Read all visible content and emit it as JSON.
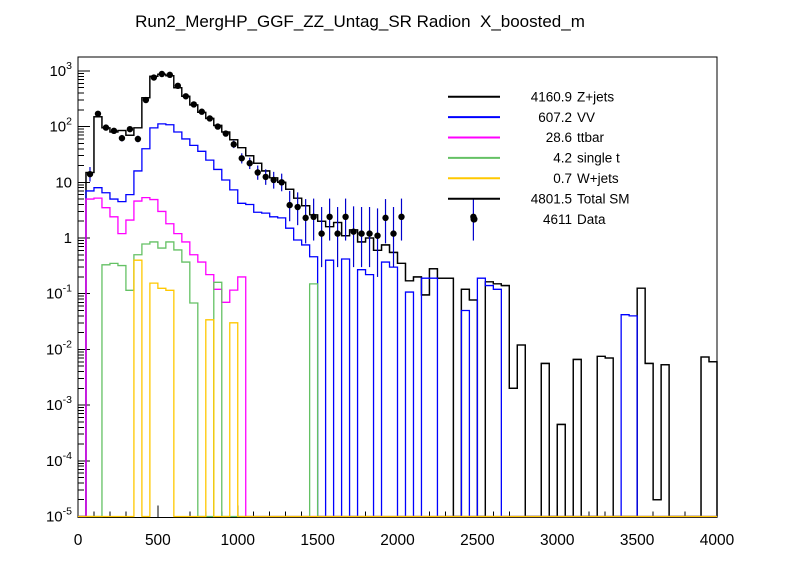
{
  "title": "Run2_MergHP_GGF_ZZ_Untag_SR Radion  X_boosted_m",
  "chart_data": {
    "type": "histogram",
    "title": "Run2_MergHP_GGF_ZZ_Untag_SR Radion  X_boosted_m",
    "x_axis": {
      "label": "",
      "min": 0,
      "max": 4000,
      "major_tick_step": 500,
      "minor_tick_step": 100,
      "tick_labels": [
        "0",
        "500",
        "1000",
        "1500",
        "2000",
        "2500",
        "3000",
        "3500",
        "4000"
      ]
    },
    "y_axis": {
      "label": "",
      "scale": "log",
      "min": 1e-05,
      "max": 1778,
      "decade_labels": [
        {
          "v": 1000,
          "base": "10",
          "exp": "3"
        },
        {
          "v": 100,
          "base": "10",
          "exp": "2"
        },
        {
          "v": 10,
          "base": "10",
          "exp": ""
        },
        {
          "v": 1,
          "base": "1",
          "exp": ""
        },
        {
          "v": 0.1,
          "base": "10",
          "exp": "-1"
        },
        {
          "v": 0.01,
          "base": "10",
          "exp": "-2"
        },
        {
          "v": 0.001,
          "base": "10",
          "exp": "-3"
        },
        {
          "v": 0.0001,
          "base": "10",
          "exp": "-4"
        },
        {
          "v": 1e-05,
          "base": "10",
          "exp": "-5"
        }
      ]
    },
    "grid": false,
    "legend_position": "top-right",
    "bin_width": 50,
    "series": [
      {
        "name": "Z+jets",
        "yield": "4160.9",
        "color": "#000000",
        "bins": [
          [
            50,
            15
          ],
          [
            100,
            150
          ],
          [
            150,
            95
          ],
          [
            200,
            80
          ],
          [
            250,
            85
          ],
          [
            300,
            70
          ],
          [
            350,
            95
          ],
          [
            400,
            330
          ],
          [
            450,
            800
          ],
          [
            500,
            870
          ],
          [
            550,
            820
          ],
          [
            600,
            500
          ],
          [
            650,
            350
          ],
          [
            700,
            245
          ],
          [
            750,
            180
          ],
          [
            800,
            140
          ],
          [
            850,
            105
          ],
          [
            900,
            80
          ],
          [
            950,
            58
          ],
          [
            1000,
            42
          ],
          [
            1050,
            30
          ],
          [
            1100,
            22
          ],
          [
            1150,
            16
          ],
          [
            1200,
            12
          ],
          [
            1250,
            10
          ],
          [
            1300,
            7.5
          ],
          [
            1350,
            5.2
          ],
          [
            1400,
            3.8
          ],
          [
            1450,
            2.6
          ],
          [
            1500,
            2.0
          ],
          [
            1550,
            1.6
          ],
          [
            1600,
            1.9
          ],
          [
            1650,
            1.1
          ],
          [
            1700,
            1.4
          ],
          [
            1750,
            0.85
          ],
          [
            1800,
            1.0
          ],
          [
            1850,
            0.6
          ],
          [
            1900,
            0.75
          ],
          [
            1950,
            0.55
          ],
          [
            2000,
            0.35
          ],
          [
            2050,
            0.17
          ],
          [
            2100,
            0.2
          ],
          [
            2150,
            0.095
          ],
          [
            2200,
            0.28
          ],
          [
            2250,
            0.19
          ],
          [
            2300,
            0.19
          ],
          [
            2400,
            0.12
          ],
          [
            2450,
            0.077
          ],
          [
            2550,
            0.163
          ],
          [
            2600,
            0.15
          ],
          [
            2650,
            0.14
          ],
          [
            2700,
            0.002
          ],
          [
            2750,
            0.012
          ],
          [
            2900,
            0.0056
          ],
          [
            3000,
            0.00045
          ],
          [
            3100,
            0.0066
          ],
          [
            3250,
            0.0075
          ],
          [
            3300,
            0.007
          ],
          [
            3500,
            0.126
          ],
          [
            3550,
            0.0056
          ],
          [
            3600,
            2e-05
          ],
          [
            3650,
            0.0053
          ],
          [
            3900,
            0.0073
          ],
          [
            3950,
            0.006
          ]
        ]
      },
      {
        "name": "VV",
        "yield": "607.2",
        "color": "#0000ff",
        "bins": [
          [
            50,
            7
          ],
          [
            100,
            8
          ],
          [
            150,
            6.5
          ],
          [
            200,
            5
          ],
          [
            250,
            4.5
          ],
          [
            300,
            6
          ],
          [
            350,
            16
          ],
          [
            400,
            40
          ],
          [
            450,
            95
          ],
          [
            500,
            112
          ],
          [
            550,
            108
          ],
          [
            600,
            80
          ],
          [
            650,
            60
          ],
          [
            700,
            46
          ],
          [
            750,
            36
          ],
          [
            800,
            25
          ],
          [
            850,
            17
          ],
          [
            900,
            11
          ],
          [
            950,
            7.3
          ],
          [
            1000,
            4.2
          ],
          [
            1050,
            4.0
          ],
          [
            1100,
            2.9
          ],
          [
            1150,
            2.8
          ],
          [
            1200,
            2.4
          ],
          [
            1250,
            2.3
          ],
          [
            1300,
            1.5
          ],
          [
            1350,
            0.92
          ],
          [
            1400,
            0.75
          ],
          [
            1450,
            0.46
          ],
          [
            1550,
            0.4
          ],
          [
            1650,
            0.42
          ],
          [
            1750,
            0.27
          ],
          [
            1800,
            0.22
          ],
          [
            1900,
            0.37
          ],
          [
            1950,
            0.3
          ],
          [
            2050,
            0.107
          ],
          [
            2150,
            0.19
          ],
          [
            2200,
            0.19
          ],
          [
            2400,
            0.05
          ],
          [
            2500,
            0.19
          ],
          [
            2550,
            0.14
          ],
          [
            2600,
            0.12
          ],
          [
            3400,
            0.042
          ],
          [
            3450,
            0.04
          ]
        ]
      },
      {
        "name": "ttbar",
        "yield": "28.6",
        "color": "#ff00ff",
        "bins": [
          [
            50,
            5.0
          ],
          [
            100,
            5.2
          ],
          [
            150,
            3.5
          ],
          [
            200,
            2.4
          ],
          [
            250,
            1.2
          ],
          [
            300,
            2.1
          ],
          [
            350,
            4.6
          ],
          [
            400,
            5.3
          ],
          [
            450,
            4.9
          ],
          [
            500,
            3.0
          ],
          [
            550,
            1.8
          ],
          [
            600,
            1.2
          ],
          [
            650,
            0.85
          ],
          [
            700,
            0.5
          ],
          [
            750,
            0.37
          ],
          [
            800,
            0.22
          ],
          [
            850,
            0.12
          ],
          [
            900,
            0.07
          ],
          [
            950,
            0.116
          ],
          [
            1000,
            0.2
          ]
        ]
      },
      {
        "name": "single t",
        "yield": "4.2",
        "color": "#64c164",
        "bins": [
          [
            150,
            0.33
          ],
          [
            200,
            0.35
          ],
          [
            250,
            0.32
          ],
          [
            300,
            0.115
          ],
          [
            350,
            0.5
          ],
          [
            400,
            0.78
          ],
          [
            450,
            0.85
          ],
          [
            500,
            0.66
          ],
          [
            550,
            0.85
          ],
          [
            600,
            0.61
          ],
          [
            650,
            0.37
          ],
          [
            700,
            0.068
          ],
          [
            850,
            0.16
          ],
          [
            1450,
            0.15
          ]
        ]
      },
      {
        "name": "W+jets",
        "yield": "0.7",
        "color": "#ffc800",
        "bins": [
          [
            350,
            0.4
          ],
          [
            450,
            0.155
          ],
          [
            500,
            0.125
          ],
          [
            550,
            0.115
          ],
          [
            800,
            0.034
          ],
          [
            950,
            0.03
          ]
        ]
      },
      {
        "name": "Total SM",
        "yield": "4801.5",
        "color": "#000000",
        "bins": [
          [
            50,
            15
          ],
          [
            100,
            150
          ],
          [
            150,
            95
          ],
          [
            200,
            80
          ],
          [
            250,
            85
          ],
          [
            300,
            70
          ],
          [
            350,
            95
          ],
          [
            400,
            330
          ],
          [
            450,
            800
          ],
          [
            500,
            870
          ],
          [
            550,
            820
          ],
          [
            600,
            500
          ],
          [
            650,
            350
          ],
          [
            700,
            245
          ],
          [
            750,
            180
          ],
          [
            800,
            140
          ],
          [
            850,
            105
          ],
          [
            900,
            80
          ],
          [
            950,
            58
          ],
          [
            1000,
            42
          ],
          [
            1050,
            30
          ],
          [
            1100,
            22
          ],
          [
            1150,
            16
          ],
          [
            1200,
            12
          ],
          [
            1250,
            10
          ],
          [
            1300,
            7.5
          ],
          [
            1350,
            5.2
          ],
          [
            1400,
            3.8
          ],
          [
            1450,
            2.6
          ],
          [
            1500,
            2.0
          ],
          [
            1550,
            1.6
          ],
          [
            1600,
            1.9
          ],
          [
            1650,
            1.1
          ],
          [
            1700,
            1.4
          ],
          [
            1750,
            0.85
          ],
          [
            1800,
            1.0
          ],
          [
            1850,
            0.6
          ],
          [
            1900,
            0.75
          ],
          [
            1950,
            0.55
          ],
          [
            2000,
            0.35
          ],
          [
            2050,
            0.17
          ],
          [
            2100,
            0.2
          ],
          [
            2150,
            0.095
          ],
          [
            2200,
            0.28
          ],
          [
            2250,
            0.19
          ],
          [
            2300,
            0.19
          ],
          [
            2400,
            0.12
          ],
          [
            2450,
            0.077
          ],
          [
            2550,
            0.163
          ],
          [
            2600,
            0.15
          ],
          [
            2650,
            0.14
          ],
          [
            2700,
            0.002
          ],
          [
            2750,
            0.012
          ],
          [
            2900,
            0.0056
          ],
          [
            3000,
            0.00045
          ],
          [
            3100,
            0.0066
          ],
          [
            3250,
            0.0075
          ],
          [
            3300,
            0.007
          ],
          [
            3500,
            0.126
          ],
          [
            3550,
            0.0056
          ],
          [
            3600,
            2e-05
          ],
          [
            3650,
            0.0053
          ],
          [
            3900,
            0.0073
          ],
          [
            3950,
            0.006
          ]
        ]
      }
    ],
    "data_series": {
      "name": "Data",
      "yield": "4611",
      "marker": "circle",
      "marker_color": "#000000",
      "error_bar_color": "#0000cd",
      "points": [
        [
          75,
          14,
          3.7,
          4.8
        ],
        [
          125,
          170,
          13,
          14
        ],
        [
          175,
          96,
          9.8,
          10.8
        ],
        [
          225,
          84,
          9.2,
          10.2
        ],
        [
          275,
          62,
          7.9,
          8.9
        ],
        [
          325,
          90,
          9.5,
          10.5
        ],
        [
          375,
          60,
          7.7,
          8.7
        ],
        [
          425,
          300,
          17.3,
          18.3
        ],
        [
          475,
          760,
          27.6,
          28.6
        ],
        [
          525,
          880,
          29.7,
          30.7
        ],
        [
          575,
          850,
          29.2,
          30.2
        ],
        [
          625,
          540,
          23.2,
          24.2
        ],
        [
          675,
          350,
          18.7,
          19.7
        ],
        [
          725,
          250,
          15.8,
          16.8
        ],
        [
          775,
          185,
          13.6,
          14.6
        ],
        [
          825,
          140,
          11.8,
          12.8
        ],
        [
          875,
          100,
          10,
          11
        ],
        [
          925,
          75,
          8.7,
          9.7
        ],
        [
          975,
          48,
          6.9,
          7.9
        ],
        [
          1025,
          27,
          5.2,
          6.2
        ],
        [
          1075,
          22,
          4.7,
          5.7
        ],
        [
          1125,
          15,
          3.9,
          5.0
        ],
        [
          1175,
          12.5,
          3.5,
          4.6
        ],
        [
          1225,
          11,
          3.3,
          4.4
        ],
        [
          1275,
          10,
          3.1,
          4.3
        ],
        [
          1325,
          3.9,
          1.9,
          3.1
        ],
        [
          1375,
          3.6,
          1.9,
          3.0
        ],
        [
          1425,
          2.3,
          1.5,
          2.7
        ],
        [
          1475,
          2.4,
          1.5,
          2.7
        ],
        [
          1525,
          1.2,
          0.9,
          2.4
        ],
        [
          1575,
          2.4,
          1.5,
          2.7
        ],
        [
          1625,
          1.2,
          0.9,
          2.4
        ],
        [
          1675,
          2.4,
          1.5,
          2.7
        ],
        [
          1725,
          1.3,
          1.0,
          2.4
        ],
        [
          1775,
          1.2,
          0.9,
          2.4
        ],
        [
          1825,
          1.2,
          0.9,
          2.4
        ],
        [
          1875,
          1.1,
          0.9,
          2.3
        ],
        [
          1925,
          2.3,
          1.5,
          2.7
        ],
        [
          1975,
          1.2,
          0.9,
          2.4
        ],
        [
          2025,
          2.4,
          1.5,
          2.7
        ],
        [
          2475,
          2.4,
          1.5,
          2.7
        ]
      ]
    },
    "legend": {
      "entries": [
        {
          "value": "4160.9",
          "label": "Z+jets",
          "color": "#000000",
          "marker": "line"
        },
        {
          "value": "607.2",
          "label": "VV",
          "color": "#0000ff",
          "marker": "line"
        },
        {
          "value": "28.6",
          "label": "ttbar",
          "color": "#ff00ff",
          "marker": "line"
        },
        {
          "value": "4.2",
          "label": "single t",
          "color": "#64c164",
          "marker": "line"
        },
        {
          "value": "0.7",
          "label": "W+jets",
          "color": "#ffc800",
          "marker": "line"
        },
        {
          "value": "4801.5",
          "label": "Total SM",
          "color": "#000000",
          "marker": "line"
        },
        {
          "value": "4611",
          "label": "Data",
          "color": "#000000",
          "marker": "dot"
        }
      ]
    }
  }
}
